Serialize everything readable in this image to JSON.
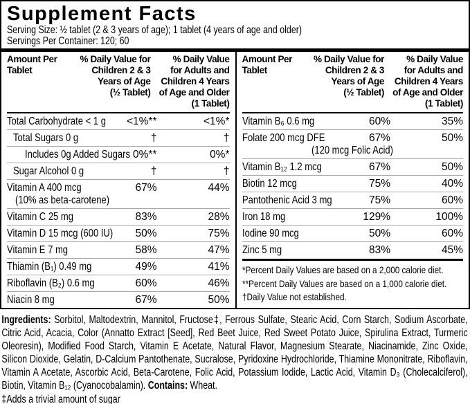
{
  "colors": {
    "background": "#ffffff",
    "text": "#000000",
    "separator": "#a6a6a6",
    "rule": "#000000"
  },
  "title": "Supplement Facts",
  "serving": {
    "size": "Serving Size: ½ tablet (2 & 3 years of age); 1 tablet (4 years of age and older)",
    "per_container": "Servings Per Container: 120; 60"
  },
  "header": {
    "amount": "Amount Per\nTablet",
    "dv_children": "% Daily Value for\nChildren 2 & 3\nYears of Age\n(½ Tablet)",
    "dv_adults": "% Daily Value\nfor Adults and\nChildren 4 Years\nof Age and Older\n(1 Tablet)"
  },
  "left_rows": [
    {
      "name": "Total Carbohydrate < 1 g",
      "dv1": "<1%**",
      "dv2": "<1%*"
    },
    {
      "name": "Total Sugars 0 g",
      "dv1": "†",
      "dv2": "†"
    },
    {
      "name": "Includes 0g Added Sugars",
      "dv1": "0%**",
      "dv2": "0%*"
    },
    {
      "name": "Sugar Alcohol 0 g",
      "dv1": "†",
      "dv2": "†"
    },
    {
      "name": "Vitamin A 400 mcg",
      "line2": "(10% as beta-carotene)",
      "dv1": "67%",
      "dv2": "44%"
    },
    {
      "name": "Vitamin C 25 mg",
      "dv1": "83%",
      "dv2": "28%"
    },
    {
      "name": "Vitamin D 15 mcg (600 IU)",
      "dv1": "50%",
      "dv2": "75%"
    },
    {
      "name": "Vitamin E 7 mg",
      "dv1": "58%",
      "dv2": "47%"
    },
    {
      "name": "Thiamin (B₁) 0.49 mg",
      "dv1": "49%",
      "dv2": "41%"
    },
    {
      "name": "Riboflavin (B₂) 0.6 mg",
      "dv1": "60%",
      "dv2": "46%"
    },
    {
      "name": "Niacin 8 mg",
      "dv1": "67%",
      "dv2": "50%"
    }
  ],
  "right_rows": [
    {
      "name": "Vitamin B₆ 0.6 mg",
      "dv1": "60%",
      "dv2": "35%"
    },
    {
      "name": "Folate 200 mcg DFE",
      "line2": "(120 mcg Folic Acid)",
      "dv1": "67%",
      "dv2": "50%"
    },
    {
      "name": "Vitamin B₁₂ 1.2 mcg",
      "dv1": "67%",
      "dv2": "50%"
    },
    {
      "name": "Biotin 12 mcg",
      "dv1": "75%",
      "dv2": "40%"
    },
    {
      "name": "Pantothenic Acid 3 mg",
      "dv1": "75%",
      "dv2": "60%"
    },
    {
      "name": "Iron 18 mg",
      "dv1": "129%",
      "dv2": "100%"
    },
    {
      "name": "Iodine 90 mcg",
      "dv1": "50%",
      "dv2": "60%"
    },
    {
      "name": "Zinc 5 mg",
      "dv1": "83%",
      "dv2": "45%"
    }
  ],
  "footnotes": [
    "*Percent Daily Values are based on a 2,000 calorie diet.",
    "**Percent Daily Values are based on a 1,000 calorie diet.",
    "†Daily Value not established."
  ],
  "ingredients": {
    "label": "Ingredients:",
    "text": "Sorbitol, Maltodextrin, Mannitol, Fructose‡, Ferrous Sulfate, Stearic Acid, Corn Starch, Sodium Ascorbate, Citric Acid, Acacia, Color (Annatto Extract [Seed], Red Beet Juice, Red Sweet Potato Juice, Spirulina Extract, Turmeric Oleoresin), Modified Food Starch, Vitamin E Acetate, Natural Flavor, Magnesium Stearate, Niacinamide, Zinc Oxide, Silicon Dioxide, Gelatin, D-Calcium Pantothenate, Sucralose, Pyridoxine Hydrochloride, Thiamine Mononitrate, Riboflavin, Vitamin A Acetate, Ascorbic Acid, Beta-Carotene, Folic Acid, Potassium Iodide, Lactic Acid, Vitamin D₃ (Cholecalciferol), Biotin, Vitamin B₁₂ (Cyanocobalamin).",
    "contains_label": "Contains:",
    "contains_value": "Wheat."
  },
  "sugar_note": "‡Adds a trivial amount of sugar"
}
